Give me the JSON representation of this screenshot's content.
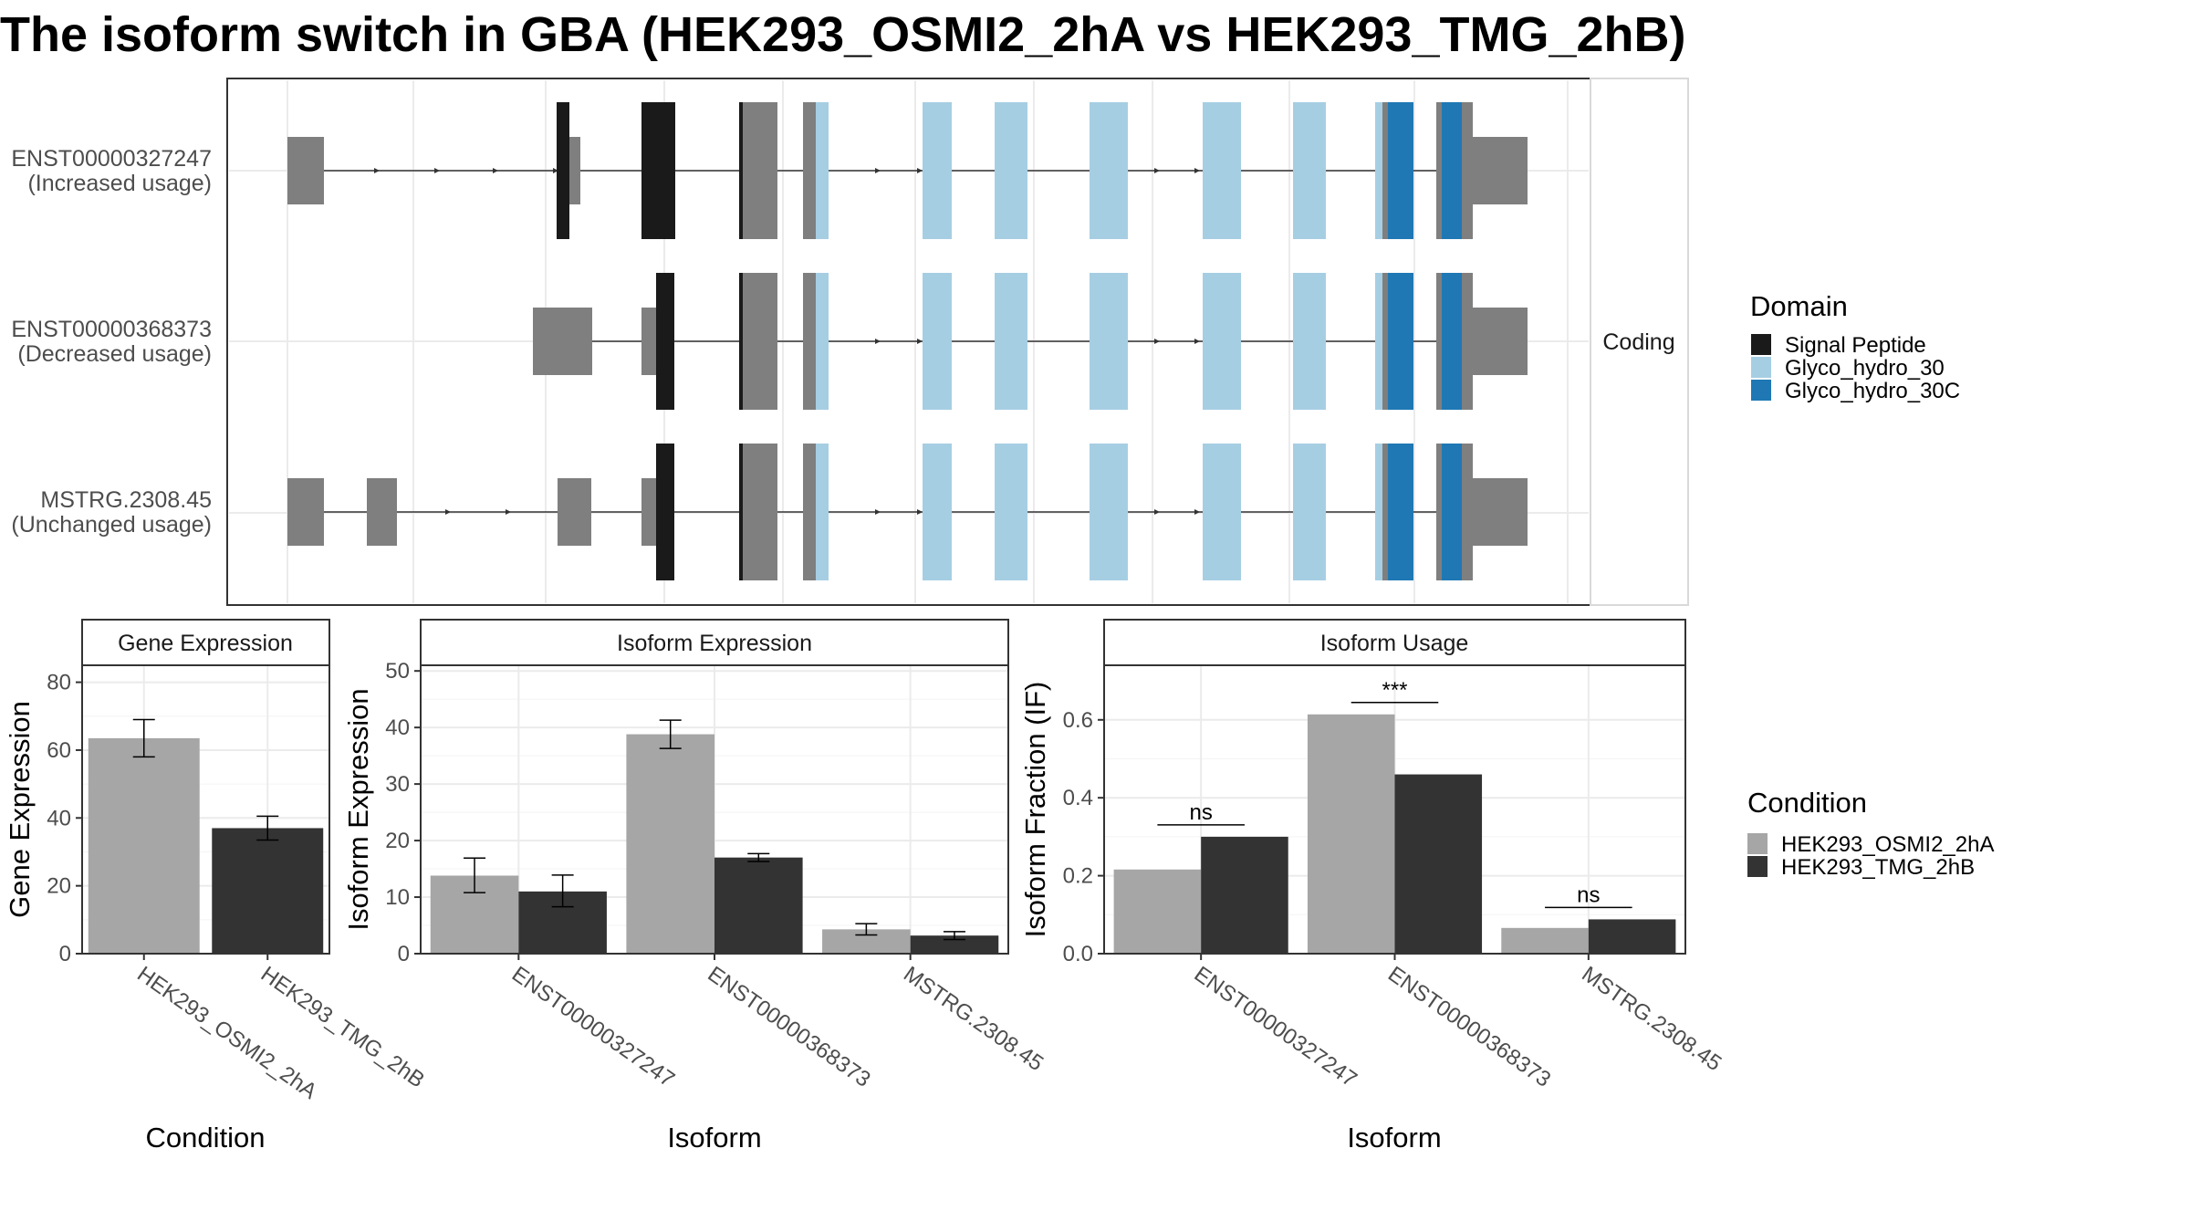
{
  "title": "The isoform switch in GBA (HEK293_OSMI2_2hA vs HEK293_TMG_2hB)",
  "colors": {
    "signal_peptide": "#1a1a1a",
    "glyco_hydro_30": "#a6cee3",
    "glyco_hydro_30c": "#1f78b4",
    "noncoding_exon": "#7f7f7f",
    "cond_a": "#a6a6a6",
    "cond_b": "#333333"
  },
  "structure": {
    "strip_label": "Coding",
    "transcripts": [
      {
        "name": "ENST00000327247",
        "note": "(Increased usage)"
      },
      {
        "name": "ENST00000368373",
        "note": "(Decreased usage)"
      },
      {
        "name": "MSTRG.2308.45",
        "note": "(Unchanged usage)"
      }
    ]
  },
  "legend_domain": {
    "title": "Domain",
    "items": [
      {
        "label": "Signal Peptide",
        "color": "#1a1a1a"
      },
      {
        "label": "Glyco_hydro_30",
        "color": "#a6cee3"
      },
      {
        "label": "Glyco_hydro_30C",
        "color": "#1f78b4"
      }
    ]
  },
  "legend_condition": {
    "title": "Condition",
    "items": [
      {
        "label": "HEK293_OSMI2_2hA",
        "color": "#a6a6a6"
      },
      {
        "label": "HEK293_TMG_2hB",
        "color": "#333333"
      }
    ]
  },
  "chart_data": [
    {
      "type": "bar",
      "panel": "Gene Expression",
      "categories": [
        "HEK293_OSMI2_2hA",
        "HEK293_TMG_2hB"
      ],
      "values": [
        63.5,
        37
      ],
      "errors": [
        [
          58,
          69
        ],
        [
          33.5,
          40.5
        ]
      ],
      "xlabel": "Condition",
      "ylabel": "Gene Expression",
      "ylim": [
        0,
        85
      ],
      "yticks": [
        0,
        20,
        40,
        60,
        80
      ],
      "grid": true
    },
    {
      "type": "bar",
      "panel": "Isoform Expression",
      "categories": [
        "ENST00000327247",
        "ENST00000368373",
        "MSTRG.2308.45"
      ],
      "series": [
        {
          "name": "HEK293_OSMI2_2hA",
          "values": [
            13.8,
            38.8,
            4.3
          ],
          "errors": [
            [
              10.8,
              16.9
            ],
            [
              36.3,
              41.3
            ],
            [
              3.3,
              5.3
            ]
          ]
        },
        {
          "name": "HEK293_TMG_2hB",
          "values": [
            11.0,
            17.0,
            3.2
          ],
          "errors": [
            [
              8.3,
              13.9
            ],
            [
              16.3,
              17.7
            ],
            [
              2.5,
              3.9
            ]
          ]
        }
      ],
      "xlabel": "Isoform",
      "ylabel": "Isoform Expression",
      "ylim": [
        0,
        51
      ],
      "yticks": [
        0,
        10,
        20,
        30,
        40,
        50
      ],
      "grid": true
    },
    {
      "type": "bar",
      "panel": "Isoform Usage",
      "categories": [
        "ENST00000327247",
        "ENST00000368373",
        "MSTRG.2308.45"
      ],
      "series": [
        {
          "name": "HEK293_OSMI2_2hA",
          "values": [
            0.216,
            0.614,
            0.066
          ]
        },
        {
          "name": "HEK293_TMG_2hB",
          "values": [
            0.3,
            0.46,
            0.088
          ]
        }
      ],
      "significance": [
        "ns",
        "***",
        "ns"
      ],
      "xlabel": "Isoform",
      "ylabel": "Isoform Fraction (IF)",
      "ylim": [
        0,
        0.74
      ],
      "yticks": [
        "0.0",
        "0.2",
        "0.4",
        "0.6"
      ],
      "grid": true
    }
  ]
}
